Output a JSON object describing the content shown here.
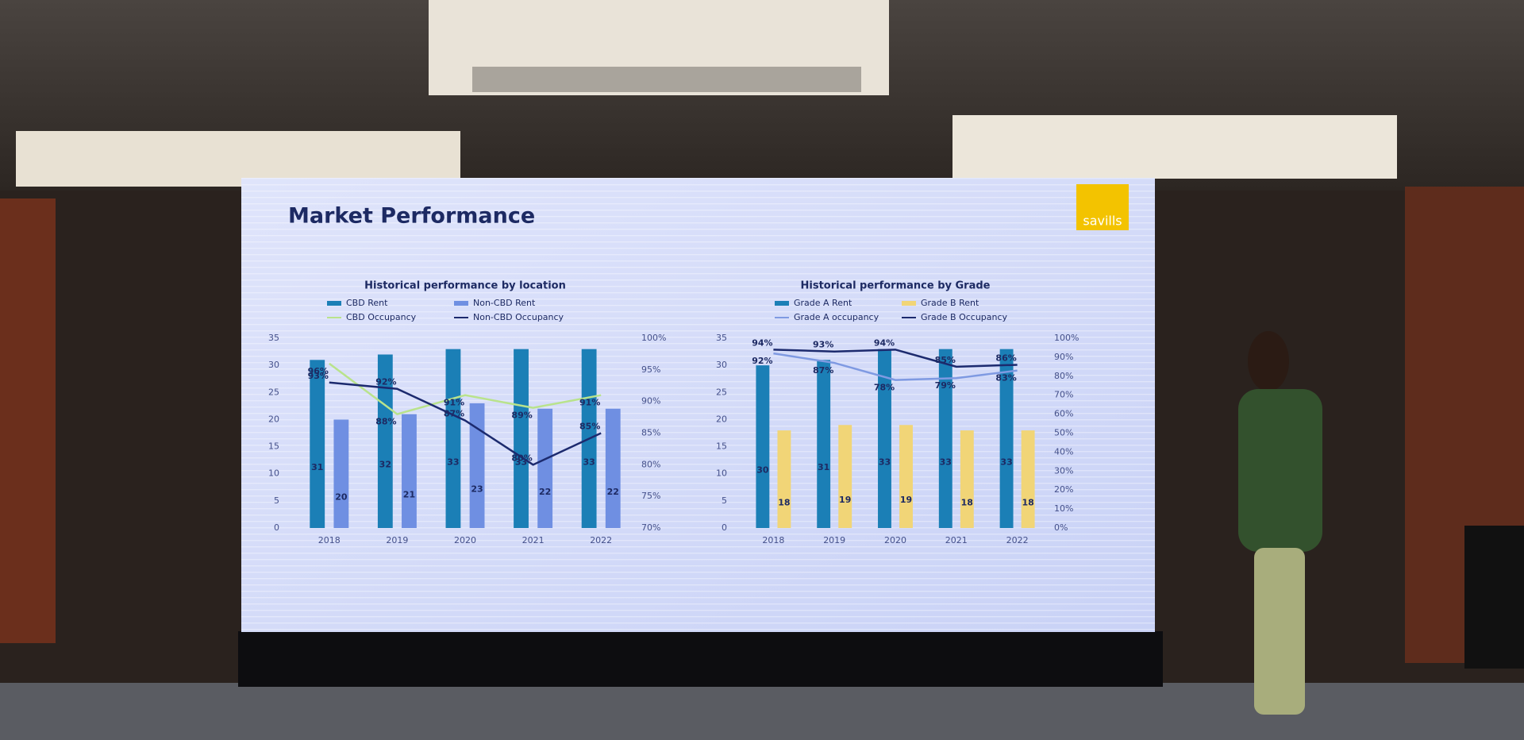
{
  "page": {
    "title": "Market Performance",
    "logo": "savills"
  },
  "chart_data": [
    {
      "type": "bar",
      "title": "Historical performance by location",
      "categories": [
        "2018",
        "2019",
        "2020",
        "2021",
        "2022"
      ],
      "series": [
        {
          "name": "CBD Rent",
          "type": "bar",
          "color": "#1b7fb6",
          "values": [
            31,
            32,
            33,
            33,
            33
          ]
        },
        {
          "name": "Non-CBD Rent",
          "type": "bar",
          "color": "#6f8fe2",
          "values": [
            20,
            21,
            23,
            22,
            22
          ]
        },
        {
          "name": "CBD Occupancy",
          "type": "line",
          "axis": "y2",
          "color": "#b9e38c",
          "values": [
            96,
            88,
            91,
            89,
            91
          ],
          "value_labels": [
            "96%",
            "88%",
            "91%",
            "89%",
            "91%"
          ]
        },
        {
          "name": "Non-CBD Occupancy",
          "type": "line",
          "axis": "y2",
          "color": "#1c2a6e",
          "values": [
            93,
            92,
            87,
            80,
            85
          ],
          "value_labels": [
            "93%",
            "92%",
            "87%",
            "80%",
            "85%"
          ]
        }
      ],
      "ylim": [
        0,
        35
      ],
      "yticks": [
        0,
        5,
        10,
        15,
        20,
        25,
        30,
        35
      ],
      "y2lim": [
        70,
        100
      ],
      "y2ticks": [
        {
          "value": 70,
          "label": "70%"
        },
        {
          "value": 75,
          "label": "75%"
        },
        {
          "value": 80,
          "label": "80%"
        },
        {
          "value": 85,
          "label": "85%"
        },
        {
          "value": 90,
          "label": "90%"
        },
        {
          "value": 95,
          "label": "95%"
        },
        {
          "value": 100,
          "label": "100%"
        }
      ],
      "grid": false
    },
    {
      "type": "bar",
      "title": "Historical performance by Grade",
      "categories": [
        "2018",
        "2019",
        "2020",
        "2021",
        "2022"
      ],
      "series": [
        {
          "name": "Grade A Rent",
          "type": "bar",
          "color": "#1b7fb6",
          "values": [
            30,
            31,
            33,
            33,
            33
          ]
        },
        {
          "name": "Grade B Rent",
          "type": "bar",
          "color": "#f1d577",
          "values": [
            18,
            19,
            19,
            18,
            18
          ]
        },
        {
          "name": "Grade A occupancy",
          "type": "line",
          "axis": "y2",
          "color": "#7f9ae2",
          "values": [
            92,
            87,
            78,
            79,
            83
          ],
          "value_labels": [
            "92%",
            "87%",
            "78%",
            "79%",
            "83%"
          ]
        },
        {
          "name": "Grade B Occupancy",
          "type": "line",
          "axis": "y2",
          "color": "#1c2a6e",
          "values": [
            94,
            93,
            94,
            85,
            86
          ],
          "value_labels": [
            "94%",
            "93%",
            "94%",
            "85%",
            "86%"
          ]
        }
      ],
      "ylim": [
        0,
        35
      ],
      "yticks": [
        0,
        5,
        10,
        15,
        20,
        25,
        30,
        35
      ],
      "y2lim": [
        0,
        100
      ],
      "y2ticks": [
        {
          "value": 0,
          "label": "0%"
        },
        {
          "value": 10,
          "label": "10%"
        },
        {
          "value": 20,
          "label": "20%"
        },
        {
          "value": 30,
          "label": "30%"
        },
        {
          "value": 40,
          "label": "40%"
        },
        {
          "value": 50,
          "label": "50%"
        },
        {
          "value": 60,
          "label": "60%"
        },
        {
          "value": 70,
          "label": "70%"
        },
        {
          "value": 80,
          "label": "80%"
        },
        {
          "value": 90,
          "label": "90%"
        },
        {
          "value": 100,
          "label": "100%"
        }
      ],
      "grid": false
    }
  ]
}
